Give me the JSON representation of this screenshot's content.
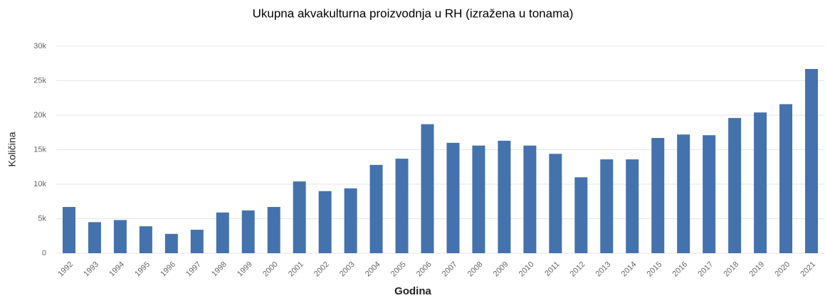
{
  "chart_data": {
    "type": "bar",
    "title": "Ukupna akvakulturna proizvodnja u RH (izražena u tonama)",
    "x_label": "Godina",
    "y_label": "Količina",
    "categories": [
      "1992",
      "1993",
      "1994",
      "1995",
      "1996",
      "1997",
      "1998",
      "1999",
      "2000",
      "2001",
      "2002",
      "2003",
      "2004",
      "2005",
      "2006",
      "2007",
      "2008",
      "2009",
      "2010",
      "2011",
      "2012",
      "2013",
      "2014",
      "2015",
      "2016",
      "2017",
      "2018",
      "2019",
      "2020",
      "2021"
    ],
    "values": [
      6700,
      4500,
      4800,
      3900,
      2800,
      3400,
      5900,
      6200,
      6700,
      10400,
      9000,
      9400,
      12800,
      13700,
      18700,
      16000,
      15600,
      16300,
      15600,
      14400,
      11000,
      13600,
      13600,
      16700,
      17200,
      17100,
      19600,
      20400,
      21600,
      26700
    ],
    "color": "#4472ad",
    "ylim": [
      0,
      30000
    ],
    "yticks": [
      0,
      {
        "value": 5000,
        "label": "5k"
      },
      {
        "value": 10000,
        "label": "10k"
      },
      {
        "value": 15000,
        "label": "15k"
      },
      {
        "value": 20000,
        "label": "20k"
      },
      {
        "value": 25000,
        "label": "25k"
      },
      {
        "value": 30000,
        "label": "30k"
      }
    ],
    "grid": true
  }
}
